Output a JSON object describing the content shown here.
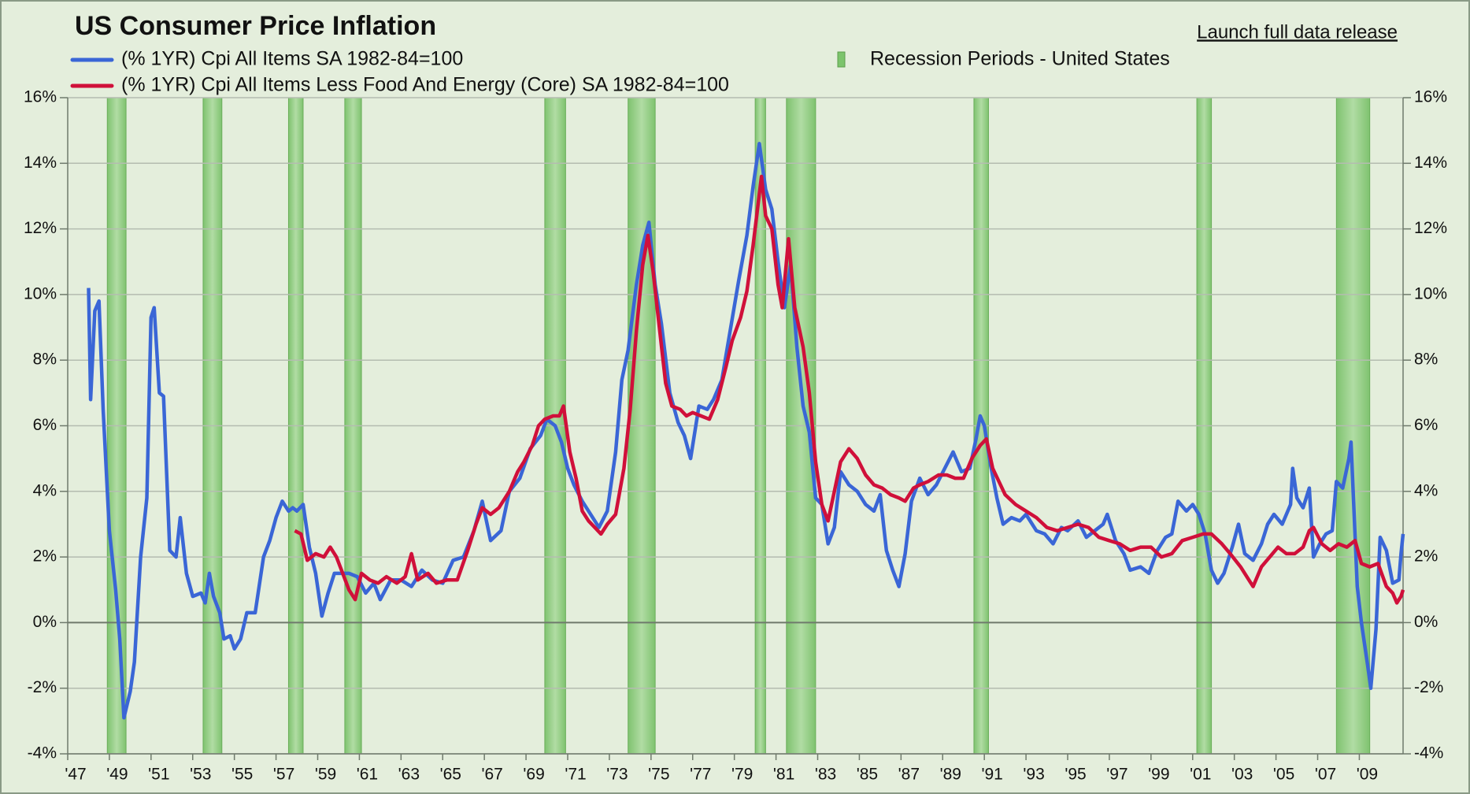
{
  "chart_data": {
    "type": "line",
    "title": "US Consumer Price Inflation",
    "link": "Launch full data release",
    "xlim": [
      1947,
      2011.1
    ],
    "xticks": [
      {
        "value": 1947,
        "label": "'47"
      },
      {
        "value": 1949,
        "label": "'49"
      },
      {
        "value": 1951,
        "label": "'51"
      },
      {
        "value": 1953,
        "label": "'53"
      },
      {
        "value": 1955,
        "label": "'55"
      },
      {
        "value": 1957,
        "label": "'57"
      },
      {
        "value": 1959,
        "label": "'59"
      },
      {
        "value": 1961,
        "label": "'61"
      },
      {
        "value": 1963,
        "label": "'63"
      },
      {
        "value": 1965,
        "label": "'65"
      },
      {
        "value": 1967,
        "label": "'67"
      },
      {
        "value": 1969,
        "label": "'69"
      },
      {
        "value": 1971,
        "label": "'71"
      },
      {
        "value": 1973,
        "label": "'73"
      },
      {
        "value": 1975,
        "label": "'75"
      },
      {
        "value": 1977,
        "label": "'77"
      },
      {
        "value": 1979,
        "label": "'79"
      },
      {
        "value": 1981,
        "label": "'81"
      },
      {
        "value": 1983,
        "label": "'83"
      },
      {
        "value": 1985,
        "label": "'85"
      },
      {
        "value": 1987,
        "label": "'87"
      },
      {
        "value": 1989,
        "label": "'89"
      },
      {
        "value": 1991,
        "label": "'91"
      },
      {
        "value": 1993,
        "label": "'93"
      },
      {
        "value": 1995,
        "label": "'95"
      },
      {
        "value": 1997,
        "label": "'97"
      },
      {
        "value": 1999,
        "label": "'99"
      },
      {
        "value": 2001,
        "label": "'01"
      },
      {
        "value": 2003,
        "label": "'03"
      },
      {
        "value": 2005,
        "label": "'05"
      },
      {
        "value": 2007,
        "label": "'07"
      },
      {
        "value": 2009,
        "label": "'09"
      }
    ],
    "ylim": [
      -4,
      16
    ],
    "yticks": [
      {
        "value": -4,
        "label": "-4%"
      },
      {
        "value": -2,
        "label": "-2%"
      },
      {
        "value": 0,
        "label": "0%"
      },
      {
        "value": 2,
        "label": "2%"
      },
      {
        "value": 4,
        "label": "4%"
      },
      {
        "value": 6,
        "label": "6%"
      },
      {
        "value": 8,
        "label": "8%"
      },
      {
        "value": 10,
        "label": "10%"
      },
      {
        "value": 12,
        "label": "12%"
      },
      {
        "value": 14,
        "label": "14%"
      },
      {
        "value": 16,
        "label": "16%"
      }
    ],
    "grid": true,
    "recessions": {
      "name": "Recession Periods - United States",
      "color": "#7cc46c",
      "periods": [
        [
          1948.9,
          1949.8
        ],
        [
          1953.5,
          1954.4
        ],
        [
          1957.6,
          1958.3
        ],
        [
          1960.3,
          1961.1
        ],
        [
          1969.9,
          1970.9
        ],
        [
          1973.9,
          1975.2
        ],
        [
          1980.0,
          1980.5
        ],
        [
          1981.5,
          1982.9
        ],
        [
          1990.5,
          1991.2
        ],
        [
          2001.2,
          2001.9
        ],
        [
          2007.9,
          2009.5
        ]
      ]
    },
    "series": [
      {
        "name": "(% 1YR) Cpi All Items SA 1982-84=100",
        "color": "#3a66d6",
        "x": [
          1948.0,
          1948.1,
          1948.3,
          1948.5,
          1948.7,
          1949.0,
          1949.3,
          1949.5,
          1949.7,
          1950.0,
          1950.2,
          1950.5,
          1950.8,
          1951.0,
          1951.15,
          1951.4,
          1951.6,
          1951.9,
          1952.2,
          1952.4,
          1952.7,
          1953.0,
          1953.4,
          1953.6,
          1953.8,
          1954.0,
          1954.3,
          1954.5,
          1954.8,
          1955.0,
          1955.3,
          1955.6,
          1956.0,
          1956.4,
          1956.7,
          1957.0,
          1957.3,
          1957.6,
          1957.8,
          1958.0,
          1958.3,
          1958.6,
          1958.9,
          1959.2,
          1959.5,
          1959.8,
          1960.0,
          1960.5,
          1960.9,
          1961.3,
          1961.7,
          1962.0,
          1962.5,
          1963.0,
          1963.5,
          1964.0,
          1964.5,
          1965.0,
          1965.5,
          1966.0,
          1966.5,
          1966.9,
          1967.3,
          1967.8,
          1968.2,
          1968.7,
          1969.2,
          1969.7,
          1970.0,
          1970.4,
          1970.7,
          1971.0,
          1971.3,
          1971.7,
          1972.0,
          1972.5,
          1972.9,
          1973.3,
          1973.6,
          1973.9,
          1974.3,
          1974.6,
          1974.9,
          1975.2,
          1975.5,
          1975.9,
          1976.3,
          1976.6,
          1976.9,
          1977.3,
          1977.7,
          1978.0,
          1978.4,
          1978.8,
          1979.2,
          1979.6,
          1979.9,
          1980.2,
          1980.5,
          1980.8,
          1981.1,
          1981.4,
          1981.7,
          1982.0,
          1982.3,
          1982.6,
          1982.9,
          1983.2,
          1983.5,
          1983.8,
          1984.1,
          1984.5,
          1984.9,
          1985.3,
          1985.7,
          1986.0,
          1986.3,
          1986.6,
          1986.9,
          1987.2,
          1987.5,
          1987.9,
          1988.3,
          1988.7,
          1989.1,
          1989.5,
          1989.9,
          1990.3,
          1990.6,
          1990.8,
          1991.0,
          1991.3,
          1991.6,
          1991.9,
          1992.3,
          1992.7,
          1993.0,
          1993.5,
          1993.9,
          1994.3,
          1994.7,
          1995.0,
          1995.5,
          1995.9,
          1996.3,
          1996.7,
          1996.9,
          1997.3,
          1997.7,
          1998.0,
          1998.5,
          1998.9,
          1999.3,
          1999.7,
          2000.0,
          2000.3,
          2000.7,
          2001.0,
          2001.3,
          2001.6,
          2001.9,
          2002.2,
          2002.5,
          2002.9,
          2003.2,
          2003.5,
          2003.9,
          2004.3,
          2004.6,
          2004.9,
          2005.3,
          2005.7,
          2005.8,
          2006.0,
          2006.3,
          2006.6,
          2006.8,
          2007.1,
          2007.4,
          2007.7,
          2007.9,
          2008.2,
          2008.5,
          2008.6,
          2008.9,
          2009.1,
          2009.4,
          2009.55,
          2009.8,
          2010.0,
          2010.3,
          2010.6,
          2010.9,
          2011.0,
          2011.1
        ],
        "values": [
          10.2,
          6.8,
          9.5,
          9.8,
          6.5,
          2.8,
          1.0,
          -0.5,
          -2.9,
          -2.1,
          -1.2,
          2.0,
          3.8,
          9.3,
          9.6,
          7.0,
          6.9,
          2.2,
          2.0,
          3.2,
          1.5,
          0.8,
          0.9,
          0.6,
          1.5,
          0.8,
          0.3,
          -0.5,
          -0.4,
          -0.8,
          -0.5,
          0.3,
          0.3,
          2.0,
          2.5,
          3.2,
          3.7,
          3.4,
          3.5,
          3.4,
          3.6,
          2.3,
          1.5,
          0.2,
          0.9,
          1.5,
          1.5,
          1.5,
          1.4,
          0.9,
          1.2,
          0.7,
          1.3,
          1.3,
          1.1,
          1.6,
          1.3,
          1.2,
          1.9,
          2.0,
          2.8,
          3.7,
          2.5,
          2.8,
          4.0,
          4.4,
          5.3,
          5.7,
          6.2,
          6.0,
          5.5,
          4.7,
          4.2,
          3.7,
          3.4,
          2.9,
          3.4,
          5.2,
          7.4,
          8.3,
          10.3,
          11.5,
          12.2,
          10.3,
          9.1,
          7.0,
          6.1,
          5.7,
          5.0,
          6.6,
          6.5,
          6.8,
          7.4,
          8.9,
          10.4,
          11.8,
          13.3,
          14.6,
          13.2,
          12.6,
          11.0,
          9.6,
          10.9,
          8.4,
          6.6,
          5.8,
          3.8,
          3.6,
          2.4,
          2.9,
          4.6,
          4.2,
          4.0,
          3.6,
          3.4,
          3.9,
          2.2,
          1.6,
          1.1,
          2.1,
          3.7,
          4.4,
          3.9,
          4.2,
          4.7,
          5.2,
          4.6,
          4.7,
          5.6,
          6.3,
          6.0,
          4.8,
          3.8,
          3.0,
          3.2,
          3.1,
          3.3,
          2.8,
          2.7,
          2.4,
          2.9,
          2.8,
          3.1,
          2.6,
          2.8,
          3.0,
          3.3,
          2.5,
          2.1,
          1.6,
          1.7,
          1.5,
          2.2,
          2.6,
          2.7,
          3.7,
          3.4,
          3.6,
          3.3,
          2.7,
          1.6,
          1.2,
          1.5,
          2.3,
          3.0,
          2.1,
          1.9,
          2.4,
          3.0,
          3.3,
          3.0,
          3.6,
          4.7,
          3.8,
          3.5,
          4.1,
          2.0,
          2.4,
          2.7,
          2.8,
          4.3,
          4.1,
          5.0,
          5.5,
          1.1,
          0.0,
          -1.3,
          -2.0,
          -0.2,
          2.6,
          2.2,
          1.2,
          1.3,
          2.1,
          2.7
        ]
      },
      {
        "name": "(% 1YR) Cpi All Items Less Food And Energy (Core) SA 1982-84=100",
        "color": "#d0103a",
        "x": [
          1957.9,
          1958.2,
          1958.5,
          1958.9,
          1959.3,
          1959.6,
          1959.9,
          1960.2,
          1960.5,
          1960.8,
          1961.1,
          1961.5,
          1961.9,
          1962.3,
          1962.8,
          1963.2,
          1963.5,
          1963.8,
          1964.3,
          1964.7,
          1965.2,
          1965.7,
          1966.2,
          1966.6,
          1966.9,
          1967.3,
          1967.7,
          1968.2,
          1968.6,
          1968.9,
          1969.3,
          1969.6,
          1969.9,
          1970.3,
          1970.6,
          1970.8,
          1971.1,
          1971.4,
          1971.7,
          1972.0,
          1972.3,
          1972.6,
          1972.9,
          1973.3,
          1973.7,
          1974.0,
          1974.3,
          1974.6,
          1974.85,
          1975.1,
          1975.4,
          1975.7,
          1976.0,
          1976.4,
          1976.7,
          1977.0,
          1977.4,
          1977.8,
          1978.2,
          1978.6,
          1978.9,
          1979.3,
          1979.6,
          1979.9,
          1980.3,
          1980.5,
          1980.8,
          1981.1,
          1981.3,
          1981.6,
          1981.9,
          1982.3,
          1982.6,
          1982.9,
          1983.2,
          1983.5,
          1983.8,
          1984.1,
          1984.5,
          1984.9,
          1985.3,
          1985.7,
          1986.1,
          1986.5,
          1986.9,
          1987.2,
          1987.6,
          1987.9,
          1988.3,
          1988.8,
          1989.2,
          1989.6,
          1990.0,
          1990.4,
          1990.8,
          1991.1,
          1991.4,
          1991.7,
          1992.0,
          1992.5,
          1993.0,
          1993.5,
          1994.0,
          1994.5,
          1995.0,
          1995.5,
          1996.0,
          1996.5,
          1997.0,
          1997.5,
          1998.0,
          1998.5,
          1999.0,
          1999.5,
          2000.0,
          2000.5,
          2001.0,
          2001.5,
          2001.9,
          2002.4,
          2002.8,
          2003.3,
          2003.7,
          2003.9,
          2004.3,
          2004.7,
          2005.1,
          2005.5,
          2005.9,
          2006.3,
          2006.6,
          2006.8,
          2007.2,
          2007.6,
          2008.0,
          2008.4,
          2008.8,
          2009.1,
          2009.5,
          2009.9,
          2010.3,
          2010.6,
          2010.8,
          2011.0,
          2011.1
        ],
        "values": [
          2.8,
          2.7,
          1.9,
          2.1,
          2.0,
          2.3,
          2.0,
          1.5,
          1.0,
          0.7,
          1.5,
          1.3,
          1.2,
          1.4,
          1.2,
          1.4,
          2.1,
          1.3,
          1.5,
          1.2,
          1.3,
          1.3,
          2.2,
          3.0,
          3.5,
          3.3,
          3.5,
          4.0,
          4.6,
          4.9,
          5.4,
          6.0,
          6.2,
          6.3,
          6.3,
          6.6,
          5.2,
          4.4,
          3.4,
          3.1,
          2.9,
          2.7,
          3.0,
          3.3,
          4.7,
          6.5,
          8.9,
          10.9,
          11.8,
          10.7,
          9.0,
          7.3,
          6.6,
          6.5,
          6.3,
          6.4,
          6.3,
          6.2,
          6.8,
          7.8,
          8.6,
          9.3,
          10.1,
          11.5,
          13.6,
          12.4,
          12.0,
          10.3,
          9.6,
          11.7,
          9.6,
          8.4,
          7.0,
          4.9,
          3.6,
          3.1,
          4.0,
          4.9,
          5.3,
          5.0,
          4.5,
          4.2,
          4.1,
          3.9,
          3.8,
          3.7,
          4.1,
          4.2,
          4.3,
          4.5,
          4.5,
          4.4,
          4.4,
          5.0,
          5.4,
          5.6,
          4.7,
          4.3,
          3.9,
          3.6,
          3.4,
          3.2,
          2.9,
          2.8,
          2.9,
          3.0,
          2.9,
          2.6,
          2.5,
          2.4,
          2.2,
          2.3,
          2.3,
          2.0,
          2.1,
          2.5,
          2.6,
          2.7,
          2.7,
          2.4,
          2.1,
          1.7,
          1.3,
          1.1,
          1.7,
          2.0,
          2.3,
          2.1,
          2.1,
          2.3,
          2.8,
          2.9,
          2.4,
          2.2,
          2.4,
          2.3,
          2.5,
          1.8,
          1.7,
          1.8,
          1.1,
          0.9,
          0.6,
          0.8,
          1.0
        ]
      }
    ]
  }
}
